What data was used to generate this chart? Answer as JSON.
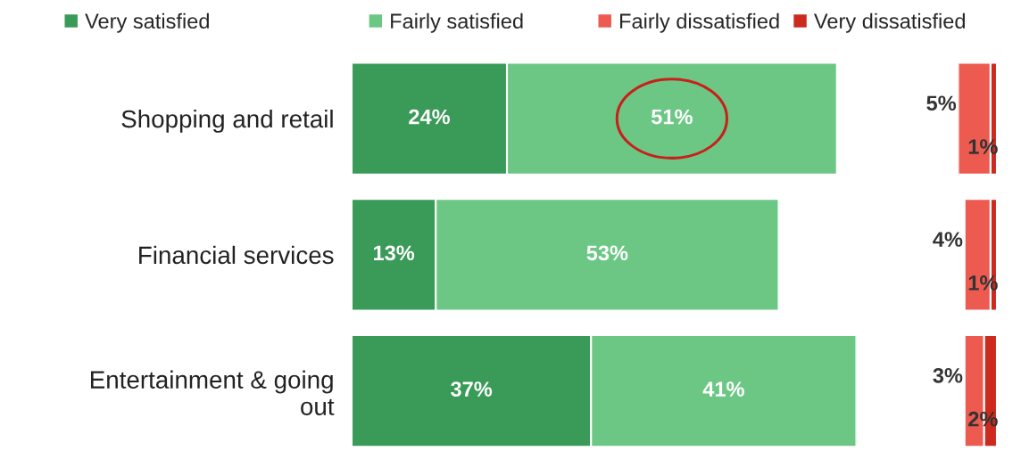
{
  "chart_data": [
    {
      "type": "bar",
      "orientation": "horizontal",
      "stacked": true,
      "categories": [
        "Shopping and retail",
        "Financial services",
        "Entertainment & going out"
      ],
      "series": [
        {
          "name": "Very satisfied",
          "color": "#3a9a57",
          "values": [
            24,
            13,
            37
          ],
          "value_labels": [
            "24%",
            "13%",
            "37%"
          ]
        },
        {
          "name": "Fairly satisfied",
          "color": "#6cc785",
          "values": [
            51,
            53,
            41
          ],
          "value_labels": [
            "51%",
            "53%",
            "41%"
          ]
        }
      ],
      "legend": "top"
    },
    {
      "type": "bar",
      "orientation": "horizontal",
      "stacked": true,
      "categories": [
        null,
        null,
        null
      ],
      "series": [
        {
          "name": "Very dissatisfied",
          "color": "#cc2a1e",
          "values": [
            1,
            1,
            2
          ],
          "value_labels": [
            "1%",
            "1%",
            "2%"
          ]
        },
        {
          "name": "Fairly dissatisfied",
          "color": "#ec5a50",
          "values": [
            5,
            4,
            3
          ],
          "value_labels": [
            "5%",
            "4%",
            "3%"
          ]
        }
      ],
      "legend": "top"
    }
  ]
}
